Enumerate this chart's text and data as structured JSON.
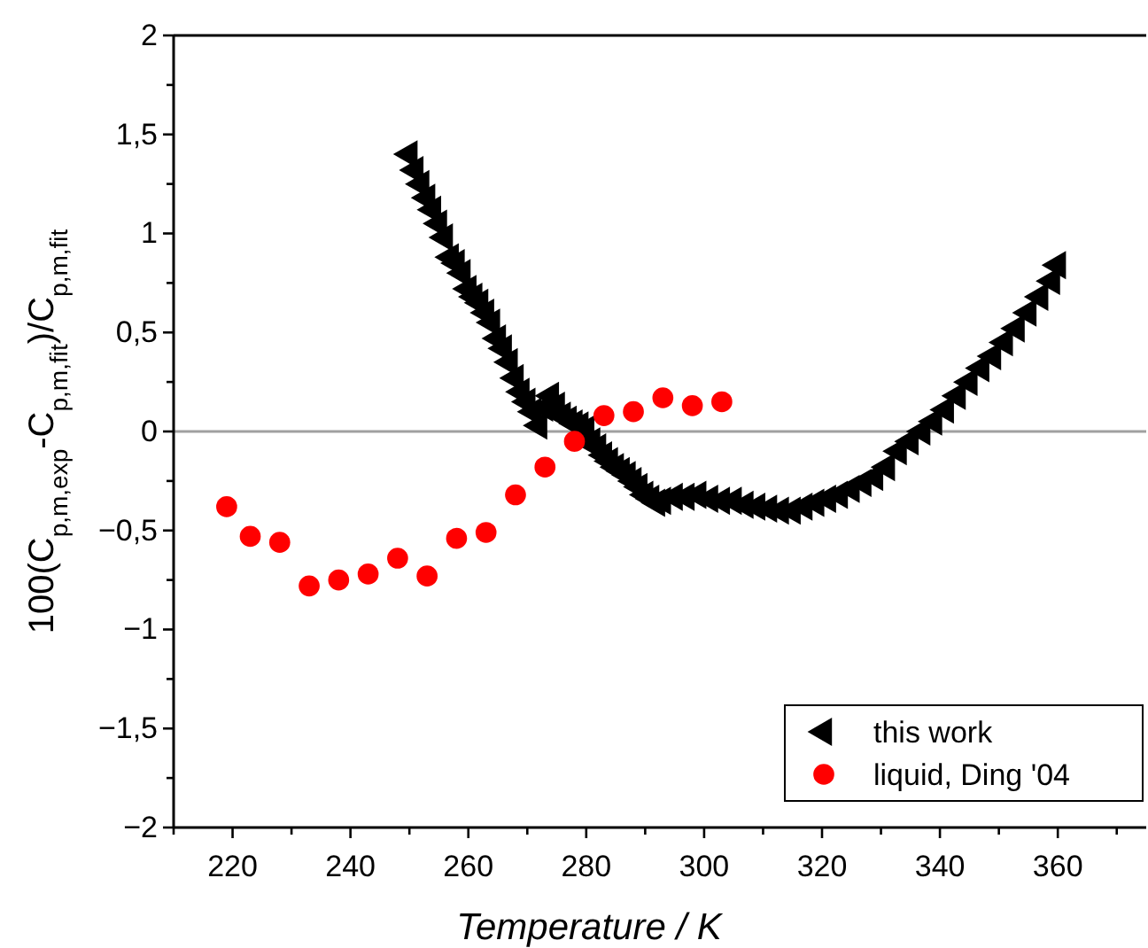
{
  "chart_data": {
    "type": "scatter",
    "xlabel": "Temperature / K",
    "ylabel": "100(C$_{p,m,exp}$-C$_{p,m,fit}$)/C$_{p,m,fit}$",
    "xlim": [
      210,
      375
    ],
    "ylim": [
      -2,
      2
    ],
    "xticks": [
      {
        "value": 210,
        "label": null
      },
      220,
      {
        "value": 230,
        "label": null
      },
      240,
      {
        "value": 250,
        "label": null
      },
      260,
      {
        "value": 270,
        "label": null
      },
      280,
      {
        "value": 290,
        "label": null
      },
      300,
      {
        "value": 310,
        "label": null
      },
      320,
      {
        "value": 330,
        "label": null
      },
      340,
      {
        "value": 350,
        "label": null
      },
      360,
      {
        "value": 370,
        "label": null
      }
    ],
    "yticks": [
      {
        "value": -2,
        "label": "−2"
      },
      {
        "value": -1.75,
        "label": null
      },
      {
        "value": -1.5,
        "label": "−1,5"
      },
      {
        "value": -1.25,
        "label": null
      },
      {
        "value": -1,
        "label": "−1"
      },
      {
        "value": -0.75,
        "label": null
      },
      {
        "value": -0.5,
        "label": "−0,5"
      },
      {
        "value": -0.25,
        "label": null
      },
      0,
      {
        "value": 0.25,
        "label": null
      },
      {
        "value": 0.5,
        "label": "0,5"
      },
      {
        "value": 0.75,
        "label": null
      },
      1,
      {
        "value": 1.25,
        "label": null
      },
      {
        "value": 1.5,
        "label": "1,5"
      },
      {
        "value": 1.75,
        "label": null
      },
      2
    ],
    "grid": false,
    "legend": "bottom right",
    "ref_lines": [
      {
        "axis": "y",
        "value": 0,
        "color": "#a0a0a0"
      }
    ],
    "series": [
      {
        "name": "this work",
        "color": "#000000",
        "marker": "triangle",
        "x": [
          250,
          251,
          252,
          253,
          254,
          255,
          256,
          257,
          258,
          259,
          260,
          261,
          262,
          263,
          264,
          265,
          266,
          267,
          268,
          269,
          270,
          271,
          272,
          273,
          274,
          275,
          276,
          277,
          278,
          279,
          280,
          281,
          282,
          283,
          284,
          285,
          286,
          287,
          288,
          289,
          290,
          291,
          292,
          293,
          295,
          297,
          299,
          301,
          303,
          305,
          307,
          309,
          311,
          313,
          315,
          317,
          319,
          321,
          323,
          325,
          327,
          329,
          331,
          333,
          335,
          337,
          339,
          341,
          343,
          345,
          347,
          349,
          351,
          353,
          355,
          357,
          359,
          360
        ],
        "values": [
          1.4,
          1.32,
          1.25,
          1.18,
          1.12,
          1.05,
          0.98,
          0.88,
          0.85,
          0.8,
          0.72,
          0.68,
          0.65,
          0.6,
          0.55,
          0.47,
          0.42,
          0.35,
          0.27,
          0.2,
          0.15,
          0.1,
          0.03,
          0.12,
          0.18,
          0.13,
          0.08,
          0.06,
          0.04,
          0.03,
          0.01,
          -0.05,
          -0.08,
          -0.12,
          -0.15,
          -0.18,
          -0.2,
          -0.22,
          -0.25,
          -0.28,
          -0.32,
          -0.34,
          -0.36,
          -0.35,
          -0.33,
          -0.33,
          -0.32,
          -0.34,
          -0.35,
          -0.35,
          -0.37,
          -0.38,
          -0.39,
          -0.4,
          -0.4,
          -0.38,
          -0.36,
          -0.34,
          -0.32,
          -0.29,
          -0.26,
          -0.23,
          -0.18,
          -0.1,
          -0.05,
          0.0,
          0.05,
          0.11,
          0.18,
          0.25,
          0.32,
          0.38,
          0.45,
          0.52,
          0.6,
          0.68,
          0.76,
          0.84
        ]
      },
      {
        "name": "liquid, Ding '04",
        "color": "#ff0000",
        "marker": "circle",
        "x": [
          219,
          223,
          228,
          233,
          238,
          243,
          248,
          253,
          258,
          263,
          268,
          273,
          278,
          283,
          288,
          293,
          298,
          303
        ],
        "values": [
          -0.38,
          -0.53,
          -0.56,
          -0.78,
          -0.75,
          -0.72,
          -0.64,
          -0.73,
          -0.54,
          -0.51,
          -0.32,
          -0.18,
          -0.05,
          0.08,
          0.1,
          0.17,
          0.13,
          0.15
        ]
      }
    ]
  }
}
